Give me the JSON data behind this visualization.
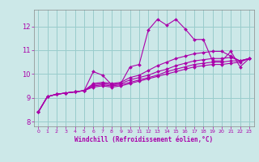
{
  "xlabel": "Windchill (Refroidissement éolien,°C)",
  "bg_color": "#cce8e8",
  "grid_color": "#99cccc",
  "line_color": "#aa00aa",
  "xlim": [
    -0.5,
    23.5
  ],
  "ylim": [
    7.8,
    12.7
  ],
  "xticks": [
    0,
    1,
    2,
    3,
    4,
    5,
    6,
    7,
    8,
    9,
    10,
    11,
    12,
    13,
    14,
    15,
    16,
    17,
    18,
    19,
    20,
    21,
    22,
    23
  ],
  "yticks": [
    8,
    9,
    10,
    11,
    12
  ],
  "lines": [
    [
      8.4,
      9.05,
      9.15,
      9.2,
      9.25,
      9.3,
      10.1,
      9.95,
      9.55,
      9.6,
      10.3,
      10.4,
      11.85,
      12.3,
      12.05,
      12.3,
      11.9,
      11.45,
      11.45,
      10.55,
      10.55,
      10.95,
      10.3,
      10.65
    ],
    [
      8.4,
      9.05,
      9.15,
      9.2,
      9.25,
      9.3,
      9.6,
      9.65,
      9.6,
      9.65,
      9.85,
      9.95,
      10.15,
      10.35,
      10.5,
      10.65,
      10.75,
      10.85,
      10.9,
      10.95,
      10.95,
      10.75,
      10.55,
      10.65
    ],
    [
      8.4,
      9.05,
      9.15,
      9.2,
      9.25,
      9.3,
      9.55,
      9.6,
      9.55,
      9.6,
      9.75,
      9.85,
      9.95,
      10.1,
      10.2,
      10.35,
      10.45,
      10.55,
      10.6,
      10.65,
      10.65,
      10.7,
      10.55,
      10.65
    ],
    [
      8.4,
      9.05,
      9.15,
      9.2,
      9.25,
      9.3,
      9.5,
      9.55,
      9.5,
      9.55,
      9.65,
      9.75,
      9.85,
      9.95,
      10.1,
      10.2,
      10.3,
      10.4,
      10.45,
      10.5,
      10.5,
      10.55,
      10.55,
      10.65
    ],
    [
      8.4,
      9.05,
      9.15,
      9.2,
      9.25,
      9.3,
      9.45,
      9.5,
      9.45,
      9.5,
      9.6,
      9.7,
      9.8,
      9.9,
      10.0,
      10.1,
      10.2,
      10.3,
      10.35,
      10.4,
      10.4,
      10.45,
      10.5,
      10.65
    ]
  ],
  "figsize": [
    3.2,
    2.0
  ],
  "dpi": 100
}
